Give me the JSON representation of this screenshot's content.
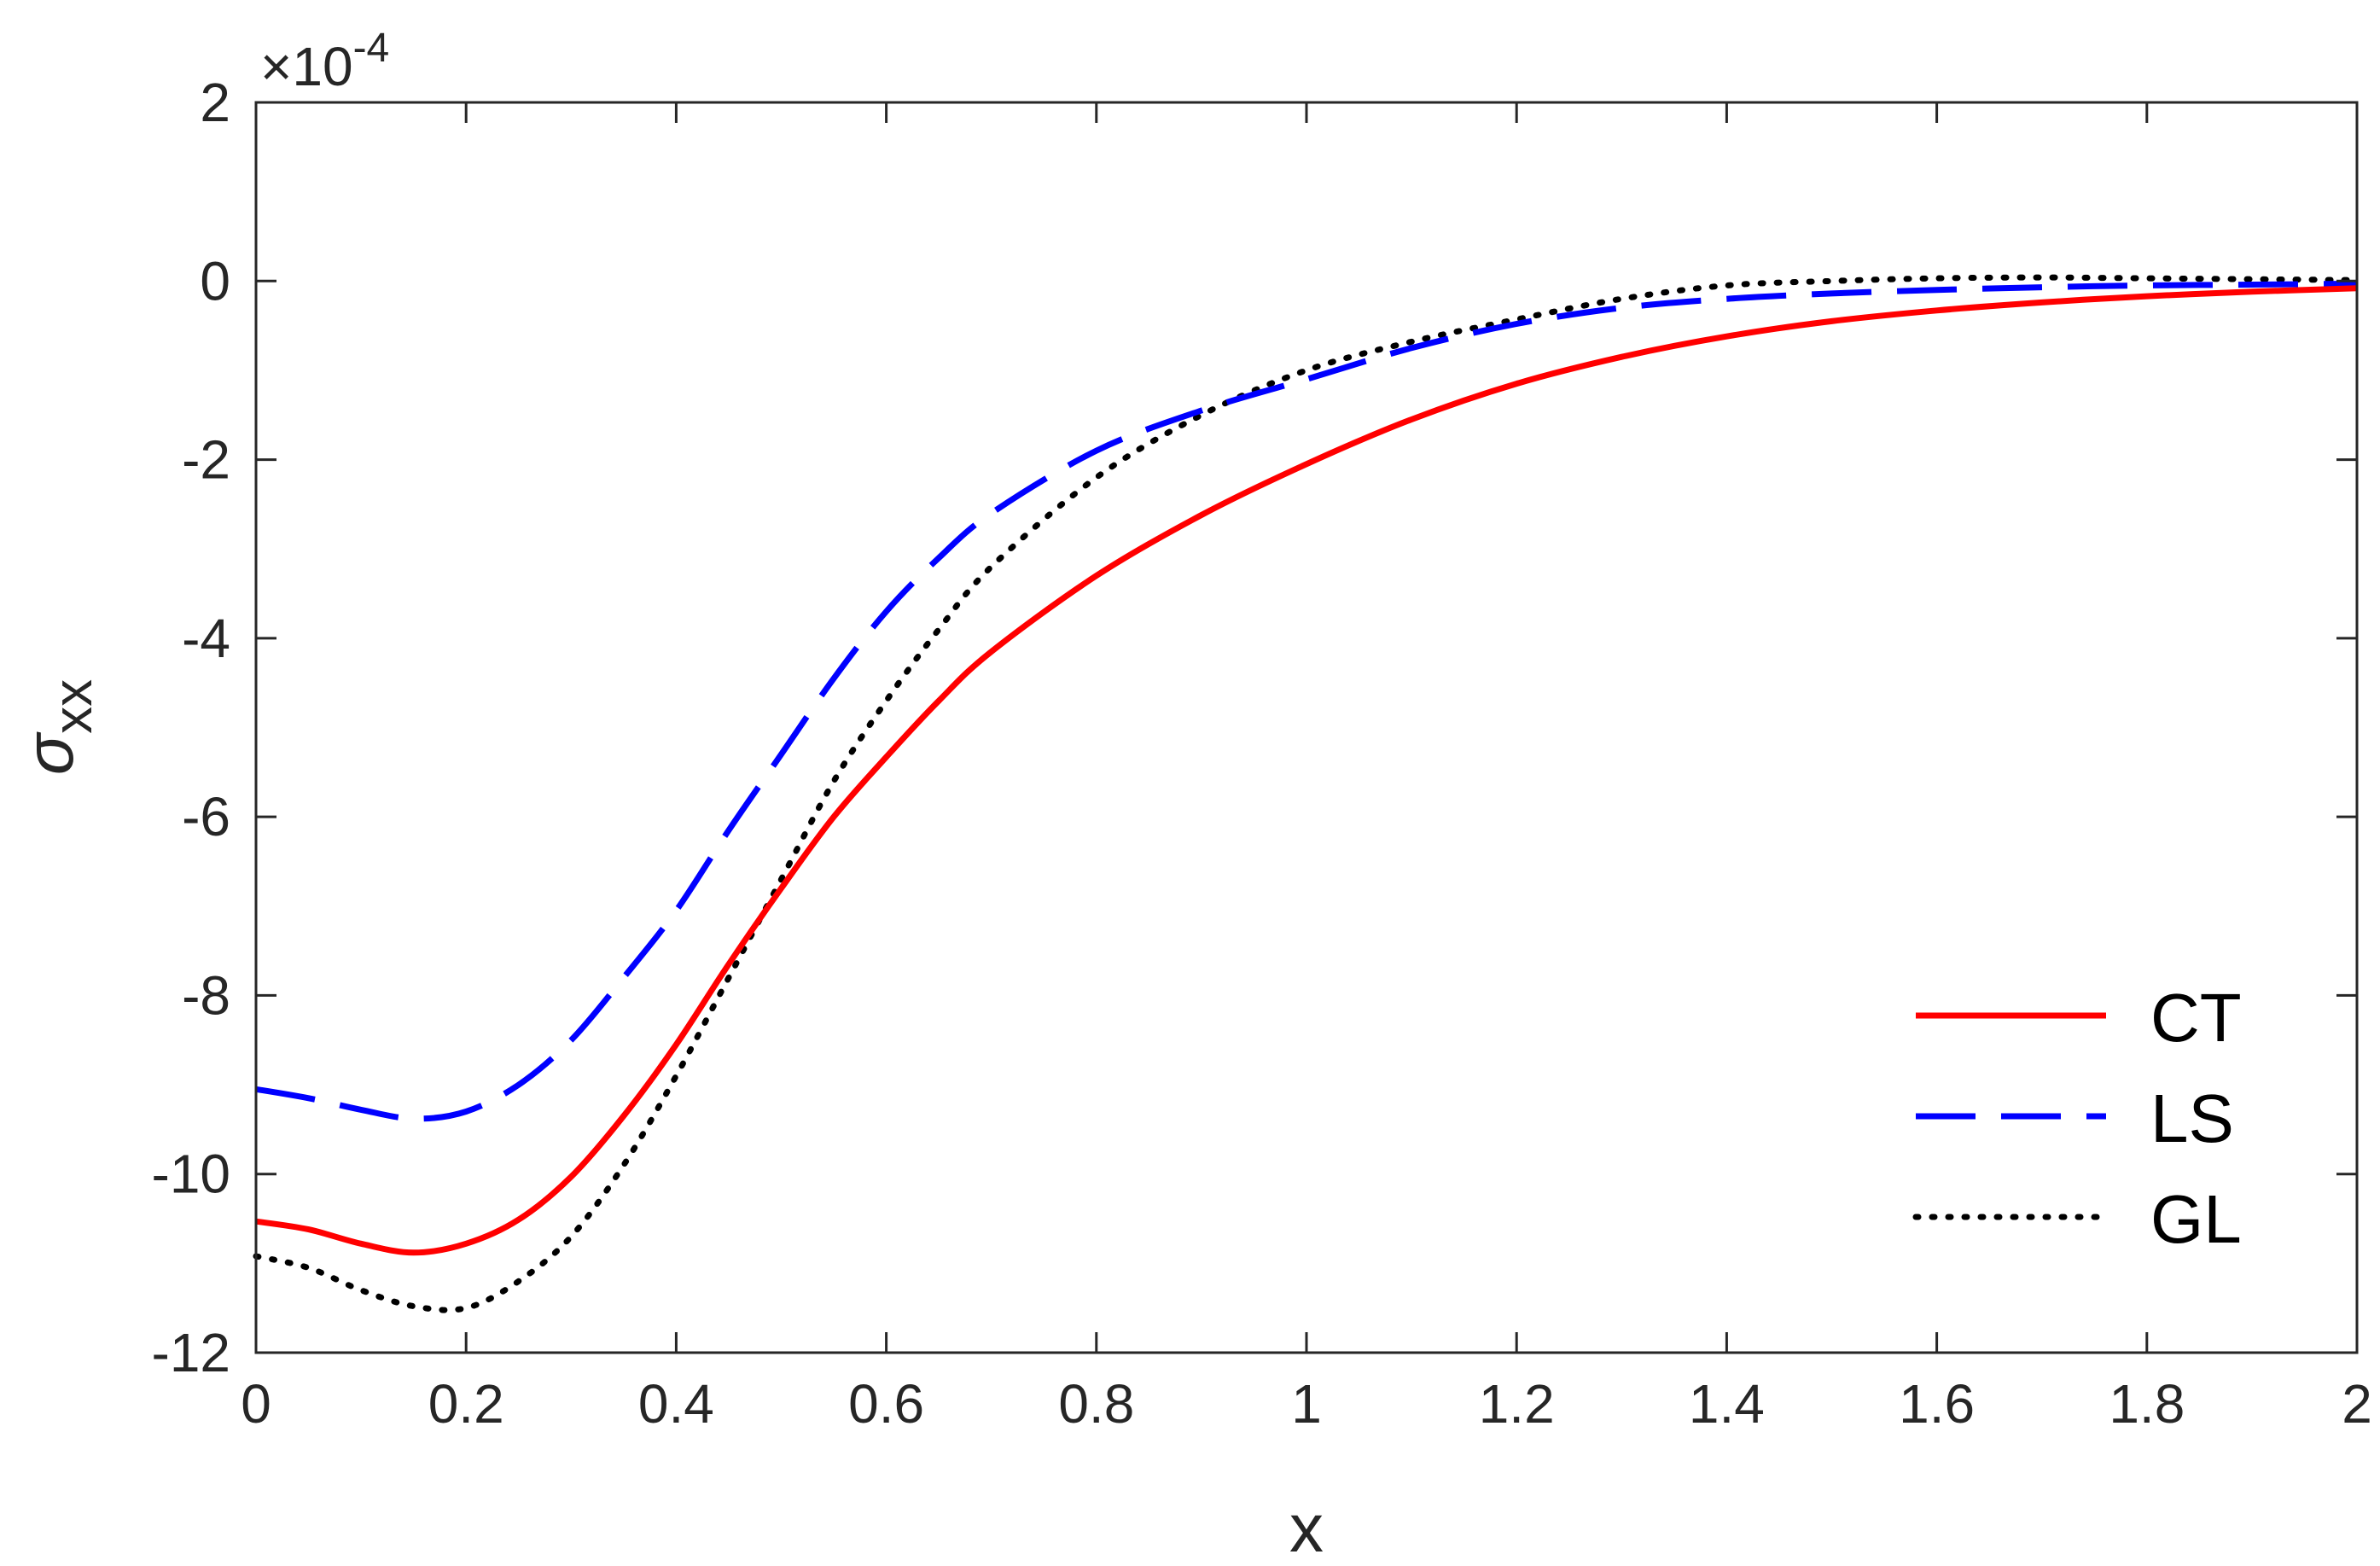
{
  "chart_data": {
    "type": "line",
    "title": "",
    "xlabel": "x",
    "ylabel": {
      "symbol": "σ",
      "subscript": "xx"
    },
    "xlim": [
      0,
      2
    ],
    "ylim": [
      -0.0012,
      0.0002
    ],
    "exponent_label": "×10",
    "exponent_power": "-4",
    "x_ticks": [
      0,
      0.2,
      0.4,
      0.6,
      0.8,
      1,
      1.2,
      1.4,
      1.6,
      1.8,
      2
    ],
    "x_tick_labels": [
      "0",
      "0.2",
      "0.4",
      "0.6",
      "0.8",
      "1",
      "1.2",
      "1.4",
      "1.6",
      "1.8",
      "2"
    ],
    "y_ticks": [
      0.0002,
      0,
      -0.0002,
      -0.0004,
      -0.0006,
      -0.0008,
      -0.001,
      -0.0012
    ],
    "y_tick_labels": [
      "2",
      "0",
      "-2",
      "-4",
      "-6",
      "-8",
      "-10",
      "-12"
    ],
    "grid": false,
    "legend_position": "bottom-right",
    "series": [
      {
        "name": "CT",
        "color": "#ff0000",
        "style": "solid",
        "x": [
          0,
          0.05,
          0.1,
          0.15,
          0.2,
          0.25,
          0.3,
          0.35,
          0.4,
          0.45,
          0.5,
          0.55,
          0.6,
          0.65,
          0.7,
          0.8,
          0.9,
          1.0,
          1.1,
          1.2,
          1.3,
          1.4,
          1.5,
          1.6,
          1.7,
          1.8,
          1.9,
          2.0
        ],
        "y": [
          -0.001053,
          -0.001062,
          -0.001078,
          -0.001088,
          -0.001078,
          -0.001051,
          -0.001003,
          -0.000935,
          -0.000855,
          -0.000765,
          -0.00068,
          -0.0006,
          -0.000533,
          -0.00047,
          -0.000415,
          -0.00033,
          -0.000262,
          -0.000205,
          -0.000155,
          -0.000115,
          -8.5e-05,
          -6.2e-05,
          -4.5e-05,
          -3.3e-05,
          -2.4e-05,
          -1.7e-05,
          -1.2e-05,
          -8e-06
        ]
      },
      {
        "name": "LS",
        "color": "#0000ff",
        "style": "dashed",
        "x": [
          0,
          0.05,
          0.1,
          0.15,
          0.2,
          0.25,
          0.3,
          0.35,
          0.4,
          0.45,
          0.5,
          0.55,
          0.6,
          0.65,
          0.7,
          0.8,
          0.9,
          1.0,
          1.1,
          1.2,
          1.3,
          1.4,
          1.5,
          1.6,
          1.7,
          1.8,
          1.9,
          2.0
        ],
        "y": [
          -0.000905,
          -0.000915,
          -0.000928,
          -0.000938,
          -0.00093,
          -0.0009,
          -0.00085,
          -0.00078,
          -0.000705,
          -0.000615,
          -0.00053,
          -0.000445,
          -0.00037,
          -0.00031,
          -0.00026,
          -0.00019,
          -0.000145,
          -0.00011,
          -7.5e-05,
          -4.8e-05,
          -3e-05,
          -2e-05,
          -1.4e-05,
          -1e-05,
          -7e-06,
          -5e-06,
          -4e-06,
          -3e-06
        ]
      },
      {
        "name": "GL",
        "color": "#000000",
        "style": "dotted",
        "x": [
          0,
          0.05,
          0.1,
          0.15,
          0.2,
          0.25,
          0.3,
          0.35,
          0.4,
          0.45,
          0.5,
          0.55,
          0.6,
          0.65,
          0.7,
          0.8,
          0.9,
          1.0,
          1.1,
          1.2,
          1.3,
          1.4,
          1.5,
          1.6,
          1.7,
          1.8,
          1.9,
          2.0
        ],
        "y": [
          -0.001092,
          -0.001105,
          -0.00113,
          -0.001148,
          -0.00115,
          -0.00112,
          -0.00107,
          -0.00099,
          -0.00089,
          -0.00078,
          -0.00067,
          -0.00056,
          -0.00047,
          -0.00039,
          -0.00032,
          -0.00022,
          -0.00015,
          -0.0001,
          -6.8e-05,
          -4.3e-05,
          -2e-05,
          -5e-06,
          0.0,
          3e-06,
          4e-06,
          3e-06,
          2e-06,
          1e-06
        ]
      }
    ]
  }
}
